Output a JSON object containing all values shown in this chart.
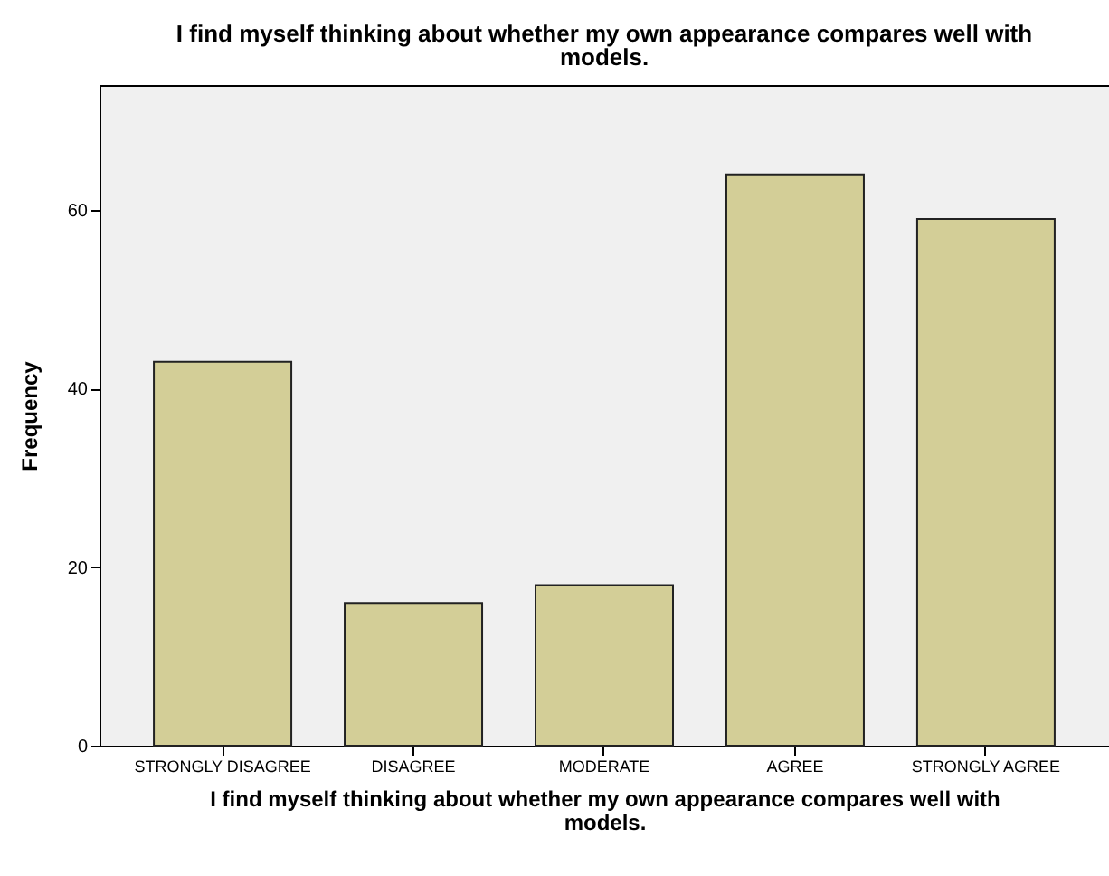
{
  "chart_data": {
    "type": "bar",
    "title": "I find myself thinking about whether my own appearance compares well with models.",
    "xlabel": "I find myself thinking about whether my own appearance compares well with models.",
    "ylabel": "Frequency",
    "categories": [
      "STRONGLY DISAGREE",
      "DISAGREE",
      "MODERATE",
      "AGREE",
      "STRONGLY AGREE"
    ],
    "values": [
      43,
      16,
      18,
      64,
      59
    ],
    "color": "#d3ce97",
    "ylim": [
      0,
      74
    ],
    "yticks": [
      0,
      20,
      40,
      60
    ],
    "grid": false
  }
}
